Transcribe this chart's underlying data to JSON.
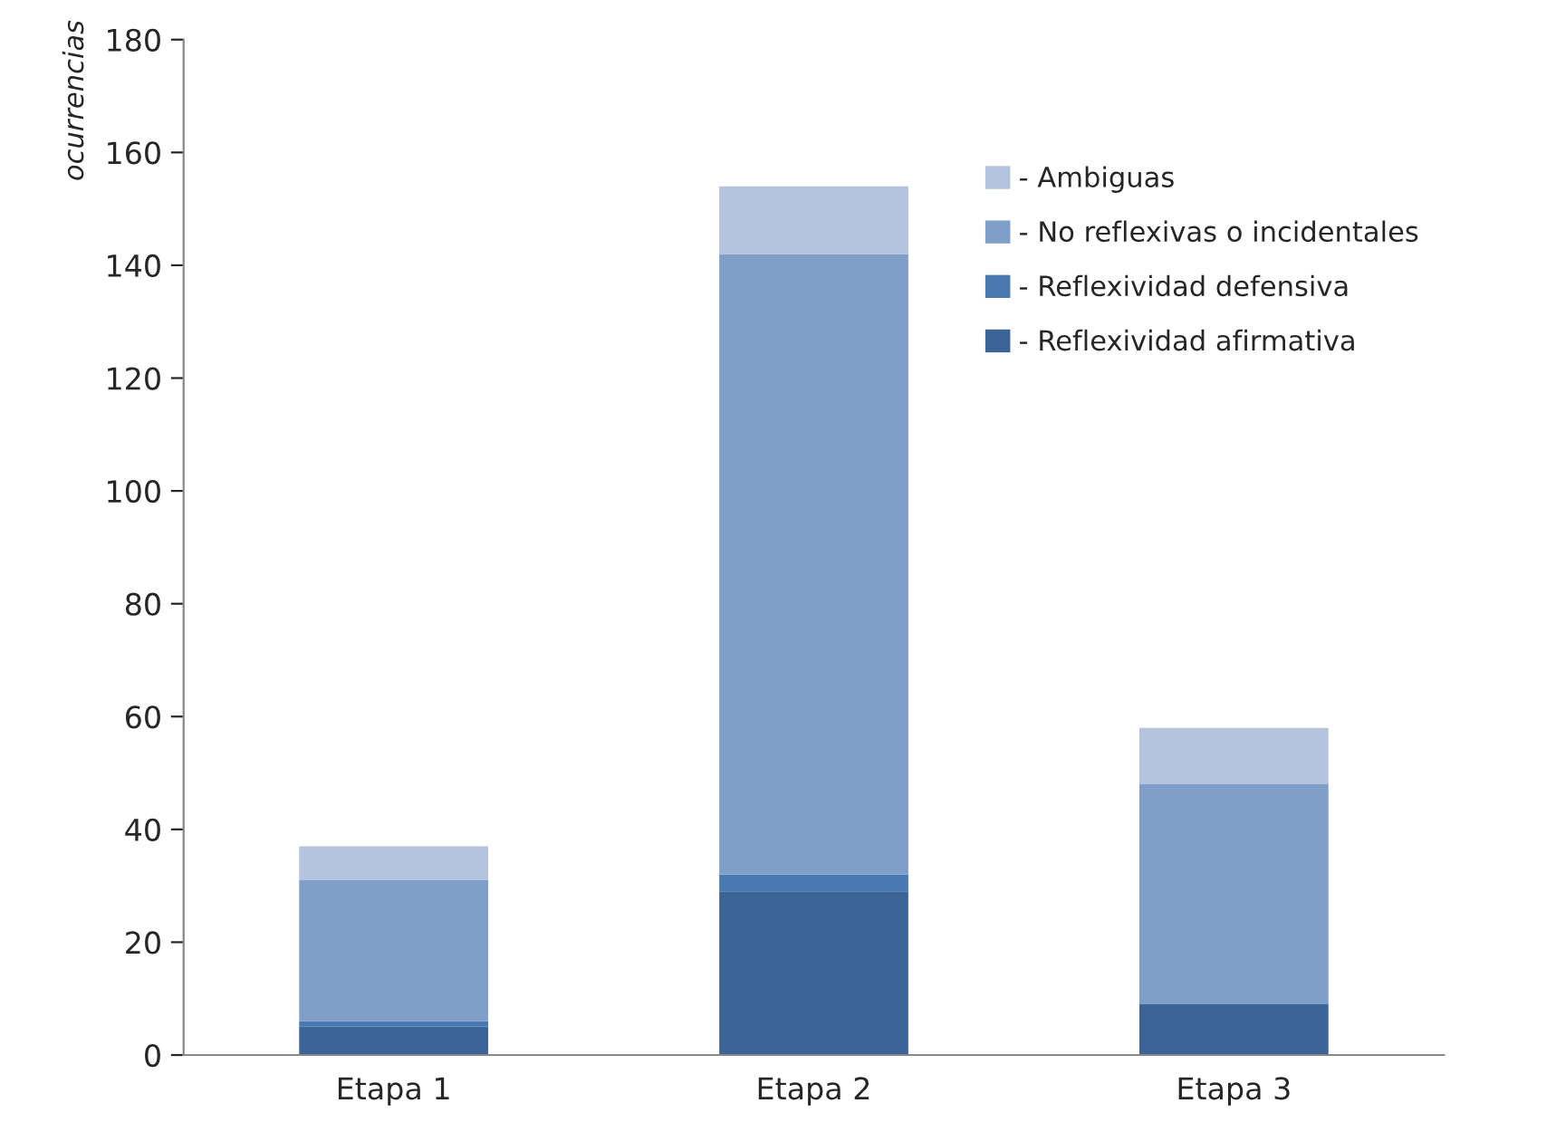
{
  "chart_data": {
    "type": "bar",
    "stacked": true,
    "ylabel": "ocurrencias",
    "categories": [
      "Etapa 1",
      "Etapa 2",
      "Etapa 3"
    ],
    "series": [
      {
        "name": "- Reflexividad afirmativa",
        "color": "#3d6496",
        "values": [
          5,
          29,
          9
        ]
      },
      {
        "name": "- Reflexividad defensiva",
        "color": "#4a78b0",
        "values": [
          1,
          3,
          0
        ]
      },
      {
        "name": "- No reflexivas o incidentales",
        "color": "#7f9ec8",
        "values": [
          25,
          110,
          39
        ]
      },
      {
        "name": "- Ambiguas",
        "color": "#b4c3de",
        "values": [
          6,
          12,
          10
        ]
      }
    ],
    "ylim": [
      0,
      180
    ],
    "yticks": [
      0,
      20,
      40,
      60,
      80,
      100,
      120,
      140,
      160,
      180
    ],
    "grid": false,
    "legend": "top right"
  }
}
